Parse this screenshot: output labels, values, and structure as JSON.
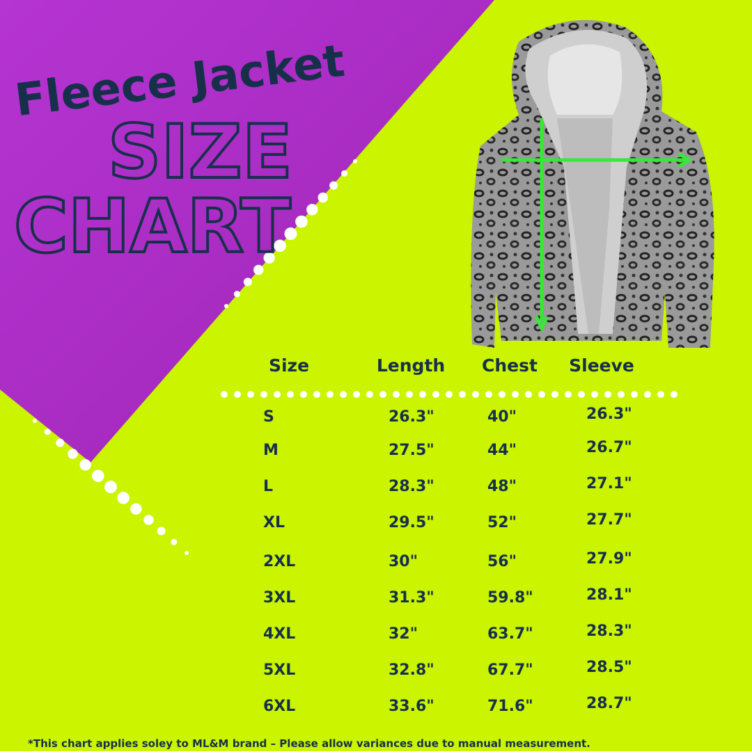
{
  "header": {
    "title": "Fleece Jacket",
    "subtitle_line1": "SIZE",
    "subtitle_line2": "CHART"
  },
  "table": {
    "columns": [
      "Size",
      "Length",
      "Chest",
      "Sleeve"
    ],
    "rows": [
      [
        "S",
        "26.3\"",
        "40\"",
        "26.3\""
      ],
      [
        "M",
        "27.5\"",
        "44\"",
        "26.7\""
      ],
      [
        "L",
        "28.3\"",
        "48\"",
        "27.1\""
      ],
      [
        "XL",
        "29.5\"",
        "52\"",
        "27.7\""
      ],
      [
        "2XL",
        "30\"",
        "56\"",
        "27.9\""
      ],
      [
        "3XL",
        "31.3\"",
        "59.8\"",
        "28.1\""
      ],
      [
        "4XL",
        "32\"",
        "63.7\"",
        "28.3\""
      ],
      [
        "5XL",
        "32.8\"",
        "67.7\"",
        "28.5\""
      ],
      [
        "6XL",
        "33.6\"",
        "71.6\"",
        "28.7\""
      ]
    ]
  },
  "footer": {
    "note": "*This chart  applies soley to ML&M brand  – Please allow  variances due to manual measurement."
  }
}
